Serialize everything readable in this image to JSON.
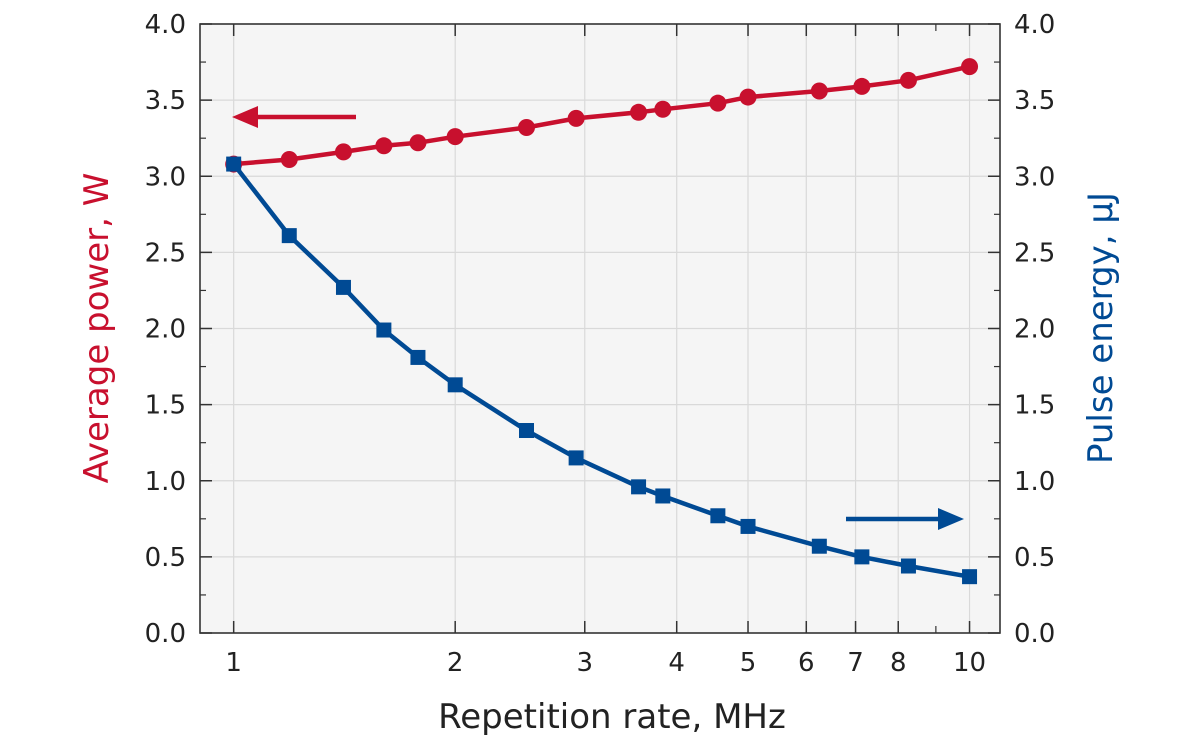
{
  "chart_data": {
    "type": "line",
    "xlabel": "Repetition rate, MHz",
    "ylabel_left": "Average power, W",
    "ylabel_right": "Pulse energy, µJ",
    "xscale": "log",
    "xlim": [
      0.9,
      11
    ],
    "xticks": [
      1,
      2,
      3,
      4,
      5,
      6,
      7,
      8,
      10
    ],
    "ylim_left": [
      0,
      4
    ],
    "ylim_right": [
      0,
      4
    ],
    "yticks": [
      "0.0",
      "0.5",
      "1.0",
      "1.5",
      "2.0",
      "2.5",
      "3.0",
      "3.5",
      "4.0"
    ],
    "grid": true,
    "colors": {
      "power": "#c8102e",
      "energy": "#004a94",
      "plot_bg": "#f5f5f5",
      "grid": "#d9d9d9",
      "axis": "#333333"
    },
    "series": [
      {
        "axis": "left",
        "marker": "circle",
        "x": [
          1.0,
          1.19,
          1.41,
          1.6,
          1.78,
          2.0,
          2.5,
          2.92,
          3.55,
          3.83,
          4.55,
          5.0,
          6.25,
          7.14,
          8.26,
          10.0
        ],
        "y": [
          3.08,
          3.11,
          3.16,
          3.2,
          3.22,
          3.26,
          3.32,
          3.38,
          3.42,
          3.44,
          3.48,
          3.52,
          3.56,
          3.59,
          3.63,
          3.72
        ]
      },
      {
        "axis": "right",
        "marker": "square",
        "x": [
          1.0,
          1.19,
          1.41,
          1.6,
          1.78,
          2.0,
          2.5,
          2.92,
          3.55,
          3.83,
          4.55,
          5.0,
          6.25,
          7.14,
          8.26,
          10.0
        ],
        "y": [
          3.08,
          2.61,
          2.27,
          1.99,
          1.81,
          1.63,
          1.33,
          1.15,
          0.96,
          0.9,
          0.77,
          0.7,
          0.57,
          0.5,
          0.44,
          0.37
        ]
      }
    ],
    "annotations": [
      {
        "type": "arrow",
        "direction": "left",
        "series": "left",
        "target": "left axis"
      },
      {
        "type": "arrow",
        "direction": "right",
        "series": "right",
        "target": "right axis"
      }
    ]
  }
}
